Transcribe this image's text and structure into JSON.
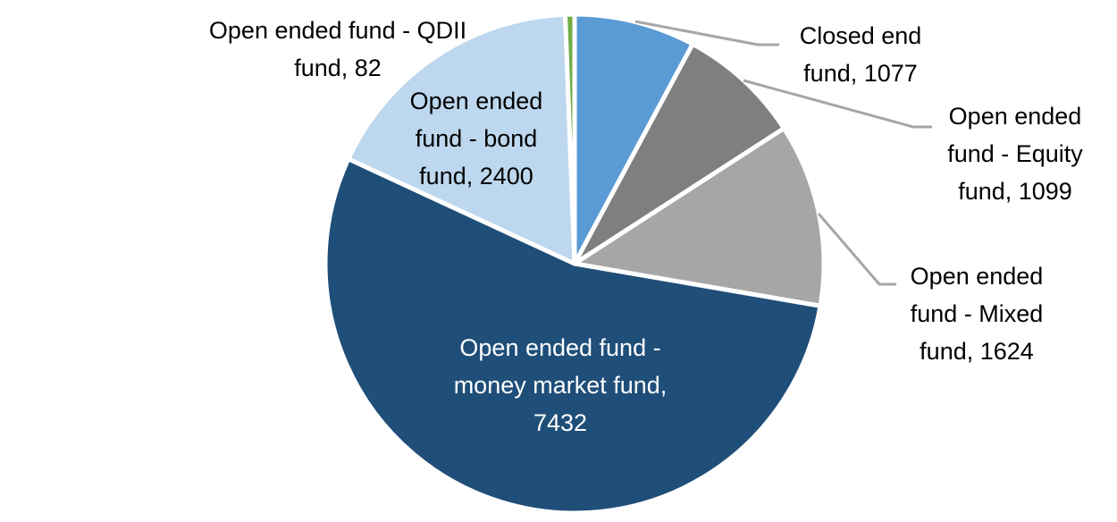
{
  "chart_data": {
    "type": "pie",
    "title": "",
    "start_angle_deg": 0,
    "direction": "clockwise",
    "total": 13714,
    "legend_position": "none",
    "data_label_format": "category, value",
    "series": [
      {
        "label": "Closed end fund",
        "value": 1077,
        "color": "#5B9BD5"
      },
      {
        "label": "Open ended fund - Equity fund",
        "value": 1099,
        "color": "#7F7F7F"
      },
      {
        "label": "Open ended fund - Mixed fund",
        "value": 1624,
        "color": "#A6A6A6"
      },
      {
        "label": "Open ended fund - money market fund",
        "value": 7432,
        "color": "#1F4E79"
      },
      {
        "label": "Open ended fund - bond fund",
        "value": 2400,
        "color": "#BDD7EE"
      },
      {
        "label": "Open ended fund - QDII fund",
        "value": 82,
        "color": "#70AD47"
      }
    ]
  },
  "labels": {
    "closed_end": {
      "lines": [
        "Closed end",
        "fund, 1077"
      ]
    },
    "equity": {
      "lines": [
        "Open ended",
        "fund - Equity",
        "fund, 1099"
      ]
    },
    "mixed": {
      "lines": [
        "Open ended",
        "fund - Mixed",
        "fund, 1624"
      ]
    },
    "money_market": {
      "lines": [
        "Open ended fund -",
        "money market fund,",
        "7432"
      ]
    },
    "bond": {
      "lines": [
        "Open ended",
        "fund - bond",
        "fund, 2400"
      ]
    },
    "qdii": {
      "lines": [
        "Open ended fund - QDII",
        "fund, 82"
      ]
    }
  },
  "colors": {
    "background": "#FFFFFF",
    "slice_border": "#FFFFFF",
    "leader_line": "#A6A6A6",
    "label_text": "#000000",
    "inner_label_text": "#FFFFFF"
  }
}
